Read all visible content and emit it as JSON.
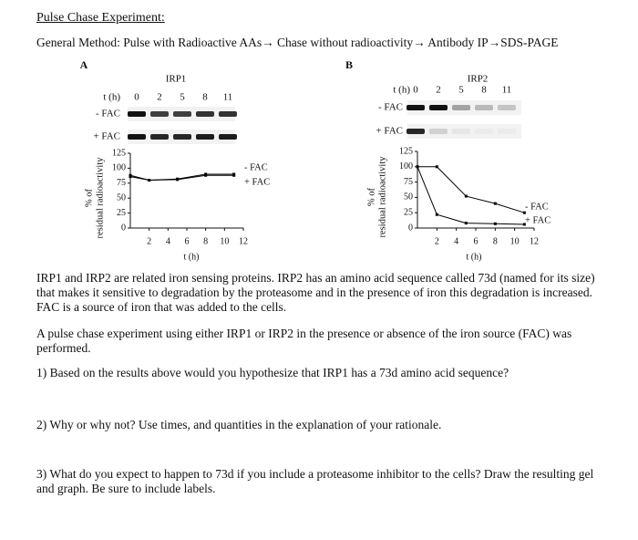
{
  "title": "Pulse Chase Experiment:",
  "method": "General Method: Pulse with Radioactive AAs→ Chase without radioactivity→ Antibody IP→SDS-PAGE",
  "panels": [
    {
      "letter": "A",
      "protein": "IRP1",
      "time_label": "t (h)",
      "times": [
        0,
        2,
        5,
        8,
        11
      ],
      "gel_rows": [
        "- FAC",
        "+ FAC"
      ],
      "graph": {
        "type": "line",
        "ylabel": [
          "% of",
          "residual radioactivity"
        ],
        "xlabel": "t (h)",
        "x": [
          0,
          2,
          5,
          8,
          11
        ],
        "xlim": [
          0,
          12
        ],
        "xticks": [
          2,
          4,
          6,
          8,
          10,
          12
        ],
        "ylim": [
          0,
          125
        ],
        "yticks": [
          0,
          25,
          50,
          75,
          100,
          125
        ],
        "series": [
          {
            "name": "- FAC",
            "color": "#000000",
            "values": [
              88,
              80,
              82,
              90,
              90
            ]
          },
          {
            "name": "+ FAC",
            "color": "#000000",
            "values": [
              86,
              80,
              81,
              88,
              88
            ]
          }
        ]
      }
    },
    {
      "letter": "B",
      "protein": "IRP2",
      "time_label": "t (h)",
      "times": [
        0,
        2,
        5,
        8,
        11
      ],
      "gel_rows": [
        "- FAC",
        "+ FAC"
      ],
      "graph": {
        "type": "line",
        "ylabel": [
          "% of",
          "residual radioactivity"
        ],
        "xlabel": "t (h)",
        "x": [
          0,
          2,
          5,
          8,
          11
        ],
        "xlim": [
          0,
          12
        ],
        "xticks": [
          2,
          4,
          6,
          8,
          10,
          12
        ],
        "ylim": [
          0,
          125
        ],
        "yticks": [
          0,
          25,
          50,
          75,
          100,
          125
        ],
        "series": [
          {
            "name": "- FAC",
            "color": "#000000",
            "values": [
              100,
              100,
              52,
              40,
              25
            ]
          },
          {
            "name": "+ FAC",
            "color": "#000000",
            "values": [
              100,
              22,
              8,
              7,
              6
            ]
          }
        ]
      }
    }
  ],
  "paragraphs": [
    "IRP1 and IRP2 are related iron sensing proteins. IRP2 has an amino acid sequence called 73d (named for its size) that makes it sensitive to degradation by the proteasome and in the presence of iron this degradation is increased. FAC is a source of iron that was added to the cells.",
    "A pulse chase experiment using either IRP1 or IRP2 in the presence or absence of the iron source (FAC) was performed."
  ],
  "questions": [
    "1) Based on the results above would you hypothesize that IRP1 has a 73d amino acid sequence?",
    "2) Why or why not? Use times, and quantities in the explanation of your rationale.",
    "3) What do you expect to happen to 73d if you include a proteasome inhibitor to the cells? Draw the resulting gel and graph. Be sure to include labels."
  ]
}
